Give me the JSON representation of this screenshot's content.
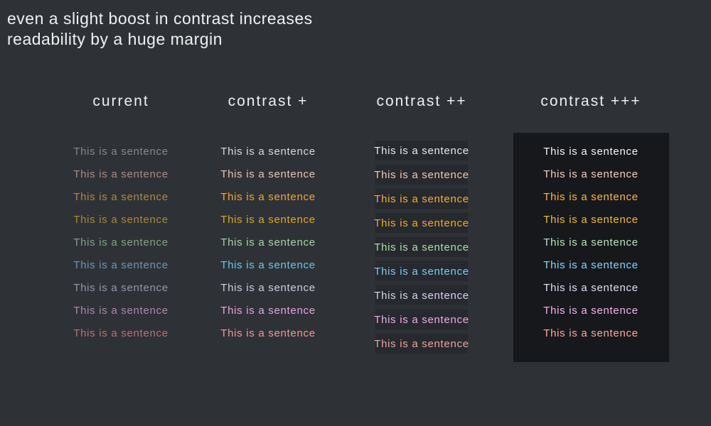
{
  "page": {
    "background_color": "#2e3236",
    "title_line1": "even a slight boost in contrast increases",
    "title_line2": "readability by a huge margin",
    "title_color": "#eff1f2"
  },
  "sentence_text": "This is a sentence",
  "columns": [
    {
      "label": "current",
      "variant": "plain",
      "row_colors": [
        "#85898d",
        "#b08a80",
        "#b2874c",
        "#a9883c",
        "#81a584",
        "#7095b3",
        "#9c93ad",
        "#b086ad",
        "#b17672"
      ]
    },
    {
      "label": "contrast +",
      "variant": "plain",
      "row_colors": [
        "#d9dcde",
        "#eec5b1",
        "#eda843",
        "#dca72e",
        "#a4d7a7",
        "#7ac0e6",
        "#d4cce5",
        "#eaa4e0",
        "#ef9b96"
      ]
    },
    {
      "label": "contrast ++",
      "variant": "strip",
      "strip_color": "#26292d",
      "row_colors": [
        "#e9ebed",
        "#f3cbb6",
        "#f3af47",
        "#e7b133",
        "#ace0af",
        "#83caf0",
        "#ddd5ee",
        "#f2ace8",
        "#f5a29d"
      ]
    },
    {
      "label": "contrast +++",
      "variant": "panel",
      "panel_color": "#17181b",
      "row_colors": [
        "#f4f6f7",
        "#f9d2bc",
        "#fab74d",
        "#f1bb38",
        "#b5e9b8",
        "#8dd4fa",
        "#e6def7",
        "#f9b4f0",
        "#fbaaa4"
      ]
    }
  ]
}
